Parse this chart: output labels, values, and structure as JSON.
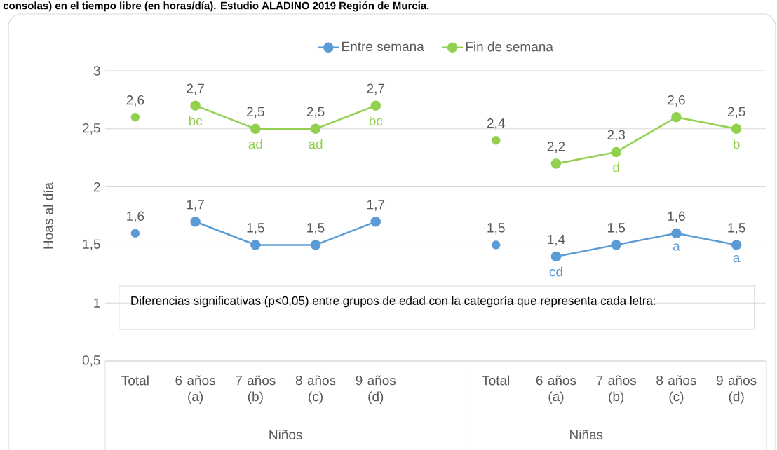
{
  "chart_data": {
    "type": "line",
    "title": "consolas) en el tiempo libre (en horas/día). Estudio ALADINO 2019 Región de Murcia.",
    "ylabel": "Hoas al  día",
    "categories": [
      "Total",
      "6 años (a)",
      "7 años (b)",
      "8 años (c)",
      "9 años (d)",
      null,
      "Total",
      "6 años (a)",
      "7 años (b)",
      "8 años (c)",
      "9 años (d)"
    ],
    "series": [
      {
        "name": "Entre semana",
        "color": "#5b9bd5",
        "values": [
          null,
          1.7,
          1.5,
          1.5,
          1.7,
          null,
          null,
          1.4,
          1.5,
          1.6,
          1.5
        ],
        "value_labels": [
          null,
          "1,7",
          "1,5",
          "1,5",
          "1,7",
          null,
          null,
          "1,4",
          "1,5",
          "1,6",
          "1,5"
        ]
      },
      {
        "name": "Fin de semana",
        "color": "#92d050",
        "values": [
          null,
          2.7,
          2.5,
          2.5,
          2.7,
          null,
          null,
          2.2,
          2.3,
          2.6,
          2.5
        ],
        "value_labels": [
          null,
          "2,7",
          "2,5",
          "2,5",
          "2,7",
          null,
          null,
          "2,2",
          "2,3",
          "2,6",
          "2,5"
        ]
      },
      {
        "type": "scatter",
        "color": "#5b9bd5",
        "values": [
          1.6,
          null,
          null,
          null,
          null,
          null,
          1.5,
          null,
          null,
          null,
          null
        ],
        "value_labels": [
          "1,6",
          null,
          null,
          null,
          null,
          null,
          "1,5",
          null,
          null,
          null,
          null
        ]
      },
      {
        "type": "scatter",
        "color": "#92d050",
        "values": [
          2.6,
          null,
          null,
          null,
          null,
          null,
          2.4,
          null,
          null,
          null,
          null
        ],
        "value_labels": [
          "2,6",
          null,
          null,
          null,
          null,
          null,
          "2,4",
          null,
          null,
          null,
          null
        ]
      }
    ],
    "ylim": [
      0.5,
      3
    ],
    "yticks": [
      {
        "value": 0.5,
        "label": "0,5"
      },
      1,
      {
        "value": 1.5,
        "label": "1,5"
      },
      2,
      {
        "value": 2.5,
        "label": "2,5"
      },
      3
    ],
    "grid": "y",
    "legend": "top",
    "marker": "circle",
    "line_style": "solid",
    "annotations": [
      "Diferencias significativas (p<0,05) entre grupos de edad con la categoría que representa cada letra:",
      "Niños",
      "Niñas",
      {
        "text": "bc",
        "x": "6 años (a)",
        "y": 2.7
      },
      {
        "text": "ad",
        "x": "7 años (b)",
        "y": 2.5
      },
      {
        "text": "ad",
        "x": "8 años (c)",
        "y": 2.5
      },
      {
        "text": "bc",
        "x": "9 años (d)",
        "y": 2.7
      },
      "d",
      "b",
      "cd",
      "a",
      "a"
    ]
  }
}
